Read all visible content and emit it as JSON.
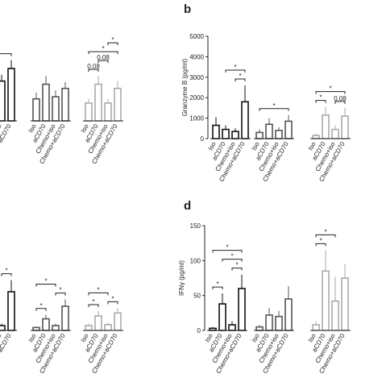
{
  "chart_data": [
    {
      "type": "bar",
      "categories": [
        "Iso",
        "aCD70",
        "Chemo+iso",
        "Chemo+aCD70"
      ],
      "ylim": [
        0,
        100
      ],
      "series": [
        {
          "color": "#111111",
          "values": [
            null,
            null,
            38,
            50
          ],
          "errors": [
            null,
            null,
            6,
            8
          ]
        },
        {
          "color": "#555555",
          "values": [
            21,
            35,
            23,
            31
          ],
          "errors": [
            6,
            8,
            6,
            6
          ]
        },
        {
          "color": "#aaaaaa",
          "values": [
            17,
            35,
            17,
            31
          ],
          "errors": [
            4,
            8,
            4,
            7
          ]
        }
      ],
      "annotations": [
        {
          "label": "*",
          "between": [
            0,
            3
          ]
        },
        {
          "label": "0.08",
          "between": [
            8,
            9
          ]
        },
        {
          "label": "0.08",
          "between": [
            9,
            10
          ]
        },
        {
          "label": "*",
          "between": [
            8,
            11
          ]
        },
        {
          "label": "*",
          "between": [
            10,
            11
          ]
        }
      ]
    },
    {
      "type": "bar",
      "panel": "b",
      "y_label": "Granzyme B (pg/ml)",
      "categories": [
        "Iso",
        "aCD70",
        "Chemo+iso",
        "Chemo+aCD70"
      ],
      "ylim": [
        0,
        5000
      ],
      "yticks": [
        0,
        1000,
        2000,
        3000,
        4000,
        5000
      ],
      "series": [
        {
          "color": "#111111",
          "values": [
            650,
            450,
            350,
            1800
          ],
          "errors": [
            400,
            200,
            150,
            800
          ]
        },
        {
          "color": "#555555",
          "values": [
            300,
            700,
            400,
            850
          ],
          "errors": [
            150,
            300,
            150,
            300
          ]
        },
        {
          "color": "#aaaaaa",
          "values": [
            150,
            1150,
            450,
            1100
          ],
          "errors": [
            100,
            400,
            200,
            400
          ]
        }
      ],
      "annotations": [
        {
          "label": "*",
          "between": [
            2,
            3
          ]
        },
        {
          "label": "*",
          "between": [
            1,
            3
          ]
        },
        {
          "label": "*",
          "between": [
            4,
            7
          ]
        },
        {
          "label": "*",
          "between": [
            8,
            9
          ]
        },
        {
          "label": "0.08",
          "between": [
            10,
            11
          ]
        },
        {
          "label": "*",
          "between": [
            8,
            11
          ]
        }
      ]
    },
    {
      "type": "bar",
      "categories": [
        "Iso",
        "aCD70",
        "Chemo+iso",
        "Chemo+aCD70"
      ],
      "ylim": [
        0,
        100
      ],
      "series": [
        {
          "color": "#111111",
          "values": [
            null,
            null,
            5,
            40
          ],
          "errors": [
            null,
            null,
            2,
            12
          ]
        },
        {
          "color": "#555555",
          "values": [
            3,
            12,
            5,
            25
          ],
          "errors": [
            1,
            4,
            2,
            7
          ]
        },
        {
          "color": "#aaaaaa",
          "values": [
            5,
            15,
            6,
            18
          ],
          "errors": [
            2,
            5,
            2,
            5
          ]
        }
      ],
      "annotations": [
        {
          "label": "*",
          "between": [
            2,
            3
          ]
        },
        {
          "label": "*",
          "between": [
            4,
            5
          ]
        },
        {
          "label": "*",
          "between": [
            6,
            7
          ]
        },
        {
          "label": "*",
          "between": [
            4,
            6
          ]
        },
        {
          "label": "*",
          "between": [
            8,
            9
          ]
        },
        {
          "label": "*",
          "between": [
            10,
            11
          ]
        },
        {
          "label": "*",
          "between": [
            8,
            10
          ]
        }
      ]
    },
    {
      "type": "bar",
      "panel": "d",
      "y_label": "IFNγ (pg/ml)",
      "categories": [
        "Iso",
        "aCD70",
        "Chemo+iso",
        "Chemo+aCD70"
      ],
      "ylim": [
        0,
        150
      ],
      "yticks": [
        0,
        50,
        100,
        150
      ],
      "series": [
        {
          "color": "#111111",
          "values": [
            3,
            38,
            8,
            60
          ],
          "errors": [
            2,
            15,
            5,
            20
          ]
        },
        {
          "color": "#555555",
          "values": [
            5,
            22,
            20,
            45
          ],
          "errors": [
            3,
            10,
            8,
            18
          ]
        },
        {
          "color": "#aaaaaa",
          "values": [
            8,
            85,
            42,
            75
          ],
          "errors": [
            5,
            30,
            35,
            20
          ]
        }
      ],
      "annotations": [
        {
          "label": "*",
          "between": [
            0,
            1
          ]
        },
        {
          "label": "*",
          "between": [
            2,
            3
          ]
        },
        {
          "label": "*",
          "between": [
            1,
            3
          ]
        },
        {
          "label": "*",
          "between": [
            0,
            3
          ]
        },
        {
          "label": "*",
          "between": [
            8,
            9
          ]
        },
        {
          "label": "*",
          "between": [
            8,
            10
          ]
        }
      ]
    }
  ]
}
